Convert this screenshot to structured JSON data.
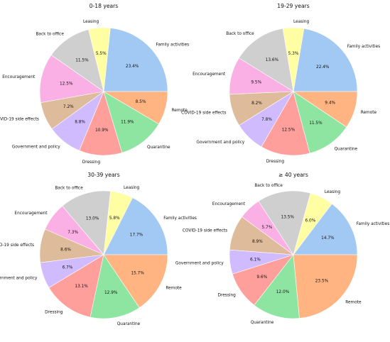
{
  "chart_data": [
    {
      "type": "pie",
      "title": "0-18 years",
      "slices": [
        {
          "label": "Family activities",
          "value": 23.4,
          "display": "23.4%",
          "color": "#a1c9f4"
        },
        {
          "label": "Leasing",
          "value": 5.5,
          "display": "5.5%",
          "color": "#fffea3"
        },
        {
          "label": "Back to office",
          "value": 11.5,
          "display": "11.5%",
          "color": "#cfcfcf"
        },
        {
          "label": "Encouragement",
          "value": 12.5,
          "display": "12.5%",
          "color": "#fab0e4"
        },
        {
          "label": "COVID-19 side effects",
          "value": 7.2,
          "display": "7.2%",
          "color": "#debb9b"
        },
        {
          "label": "Government and policy",
          "value": 8.8,
          "display": "8.8%",
          "color": "#d0bbff"
        },
        {
          "label": "Dressing",
          "value": 10.9,
          "display": "10.9%",
          "color": "#ff9f9b"
        },
        {
          "label": "Quarantine",
          "value": 11.9,
          "display": "11.9%",
          "color": "#8de5a1"
        },
        {
          "label": "Remote",
          "value": 8.5,
          "display": "8.5%",
          "color": "#ffb482"
        }
      ]
    },
    {
      "type": "pie",
      "title": "19-29 years",
      "slices": [
        {
          "label": "Family activities",
          "value": 22.4,
          "display": "22.4%",
          "color": "#a1c9f4"
        },
        {
          "label": "Leasing",
          "value": 5.3,
          "display": "5.3%",
          "color": "#fffea3"
        },
        {
          "label": "Back to office",
          "value": 13.6,
          "display": "13.6%",
          "color": "#cfcfcf"
        },
        {
          "label": "Encouragement",
          "value": 9.5,
          "display": "9.5%",
          "color": "#fab0e4"
        },
        {
          "label": "COVID-19 side effects",
          "value": 8.2,
          "display": "8.2%",
          "color": "#debb9b"
        },
        {
          "label": "Government and policy",
          "value": 7.8,
          "display": "7.8%",
          "color": "#d0bbff"
        },
        {
          "label": "Dressing",
          "value": 12.5,
          "display": "12.5%",
          "color": "#ff9f9b"
        },
        {
          "label": "Quarantine",
          "value": 11.5,
          "display": "11.5%",
          "color": "#8de5a1"
        },
        {
          "label": "Remote",
          "value": 9.4,
          "display": "9.4%",
          "color": "#ffb482"
        }
      ]
    },
    {
      "type": "pie",
      "title": "30-39 years",
      "slices": [
        {
          "label": "Family activities",
          "value": 17.7,
          "display": "17.7%",
          "color": "#a1c9f4"
        },
        {
          "label": "Leasing",
          "value": 5.8,
          "display": "5.8%",
          "color": "#fffea3"
        },
        {
          "label": "Back to office",
          "value": 13.0,
          "display": "13.0%",
          "color": "#cfcfcf"
        },
        {
          "label": "Encouragement",
          "value": 7.3,
          "display": "7.3%",
          "color": "#fab0e4"
        },
        {
          "label": "COVID-19 side effects",
          "value": 8.6,
          "display": "8.6%",
          "color": "#debb9b"
        },
        {
          "label": "Government and policy",
          "value": 6.7,
          "display": "6.7%",
          "color": "#d0bbff"
        },
        {
          "label": "Dressing",
          "value": 13.1,
          "display": "13.1%",
          "color": "#ff9f9b"
        },
        {
          "label": "Quarantine",
          "value": 12.9,
          "display": "12.9%",
          "color": "#8de5a1"
        },
        {
          "label": "Remote",
          "value": 15.7,
          "display": "15.7%",
          "color": "#ffb482"
        }
      ]
    },
    {
      "type": "pie",
      "title": "≥ 40 years",
      "slices": [
        {
          "label": "Family activities",
          "value": 14.7,
          "display": "14.7%",
          "color": "#a1c9f4"
        },
        {
          "label": "Leasing",
          "value": 6.0,
          "display": "6.0%",
          "color": "#fffea3"
        },
        {
          "label": "Back to office",
          "value": 13.5,
          "display": "13.5%",
          "color": "#cfcfcf"
        },
        {
          "label": "Encouragement",
          "value": 5.7,
          "display": "5.7%",
          "color": "#fab0e4"
        },
        {
          "label": "COVID-19 side effects",
          "value": 8.9,
          "display": "8.9%",
          "color": "#debb9b"
        },
        {
          "label": "Government and policy",
          "value": 6.1,
          "display": "6.1%",
          "color": "#d0bbff"
        },
        {
          "label": "Dressing",
          "value": 9.6,
          "display": "9.6%",
          "color": "#ff9f9b"
        },
        {
          "label": "Quarantine",
          "value": 12.0,
          "display": "12.0%",
          "color": "#8de5a1"
        },
        {
          "label": "Remote",
          "value": 23.5,
          "display": "23.5%",
          "color": "#ffb482"
        }
      ]
    }
  ]
}
